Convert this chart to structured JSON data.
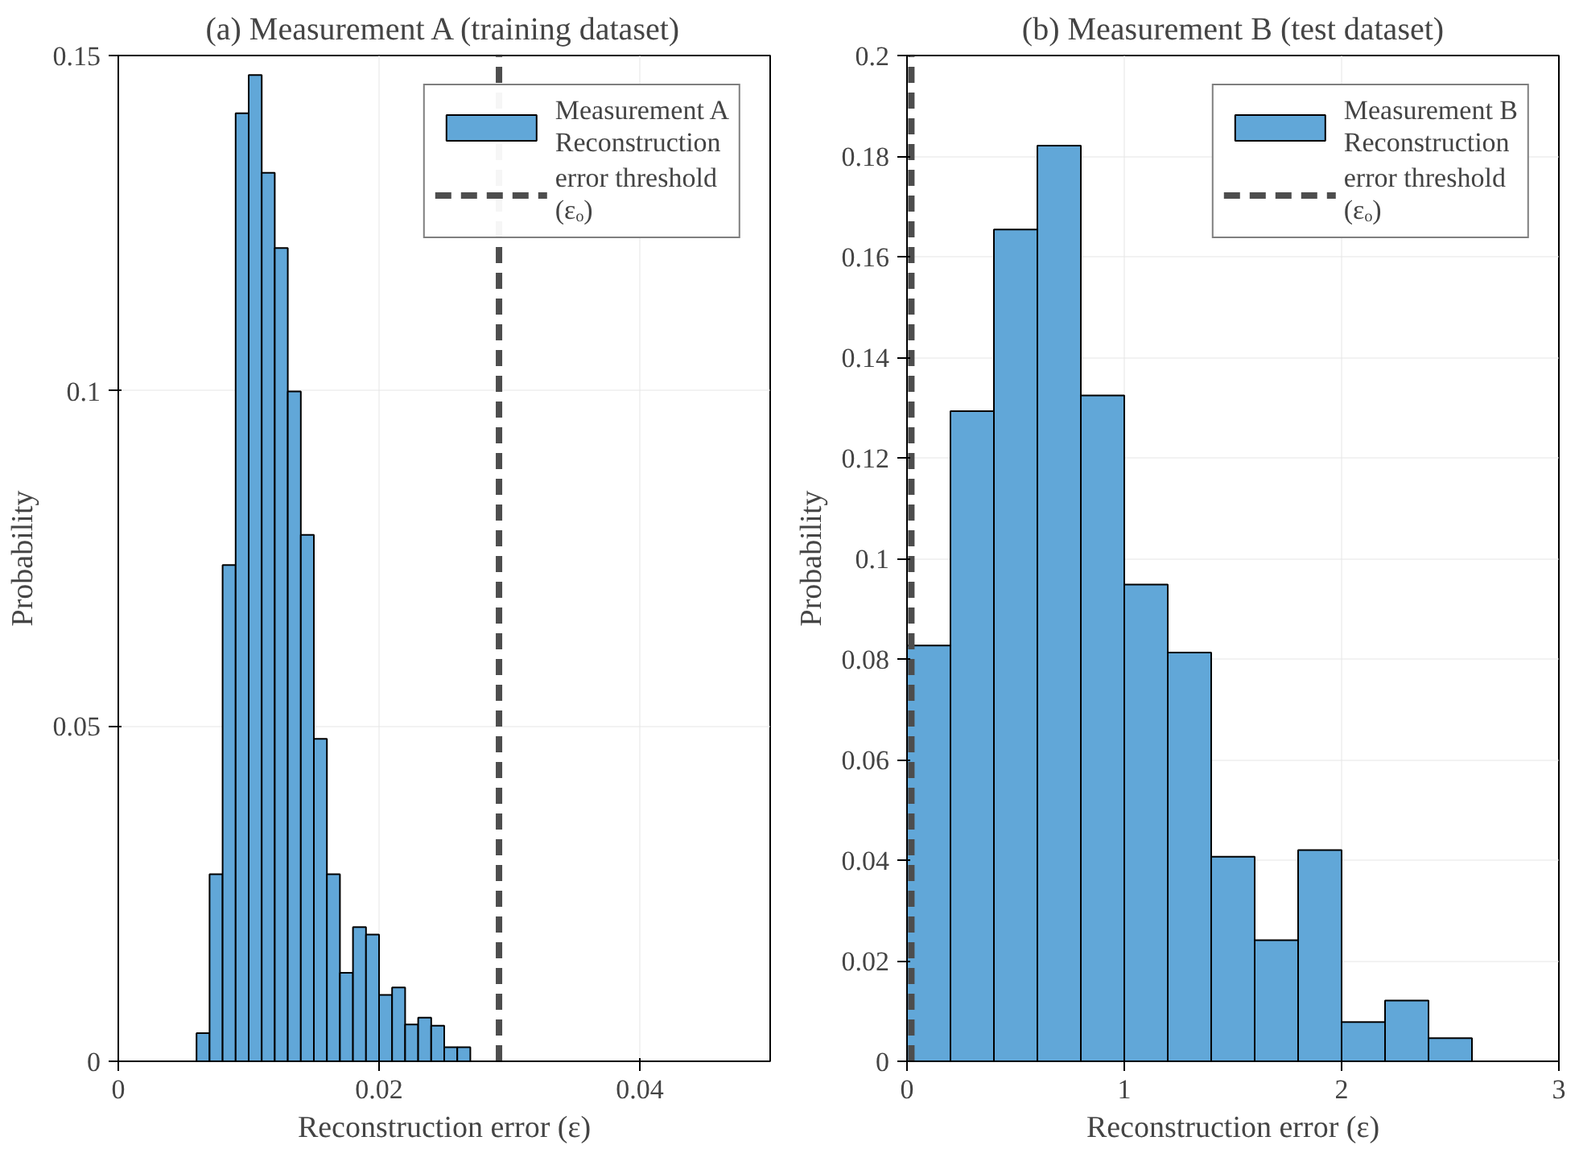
{
  "chart_data": [
    {
      "type": "histogram",
      "title": "(a) Measurement A (training dataset)",
      "xlabel": "Reconstruction error (ε)",
      "ylabel": "Probability",
      "bins": [
        0.006,
        0.007,
        0.008,
        0.009,
        0.01,
        0.011,
        0.012,
        0.013,
        0.014,
        0.015,
        0.016,
        0.017,
        0.018,
        0.019,
        0.02,
        0.021,
        0.022,
        0.023,
        0.024,
        0.025,
        0.026,
        0.027
      ],
      "series": [
        {
          "name": "Measurement A\nReconstruction",
          "color": "#61a7d8",
          "values": [
            0.0042,
            0.0279,
            0.074,
            0.1414,
            0.1471,
            0.1325,
            0.1213,
            0.0999,
            0.0785,
            0.0481,
            0.0279,
            0.0132,
            0.02,
            0.0189,
            0.0099,
            0.011,
            0.0055,
            0.0065,
            0.0053,
            0.0021,
            0.0021
          ]
        }
      ],
      "ref_lines": [
        {
          "axis": "x",
          "value": 0.0292,
          "label": "error threshold\n(εₒ)",
          "color": "#4d4d4d",
          "line_style": "dashed"
        }
      ],
      "xlim": [
        0,
        0.05
      ],
      "xticks": [
        0,
        0.02,
        0.04
      ],
      "ylim": [
        0,
        0.15
      ],
      "yticks": [
        0,
        0.05,
        0.1,
        0.15
      ],
      "grid": true,
      "legend": "top right"
    },
    {
      "type": "histogram",
      "title": "(b) Measurement B (test dataset)",
      "xlabel": "Reconstruction error (ε)",
      "ylabel": "Probability",
      "bins": [
        0,
        0.2,
        0.4,
        0.6,
        0.8,
        1.0,
        1.2,
        1.4,
        1.6,
        1.8,
        2.0,
        2.2,
        2.4,
        2.6
      ],
      "series": [
        {
          "name": "Measurement B\nReconstruction",
          "color": "#61a7d8",
          "values": [
            0.0827,
            0.1293,
            0.1654,
            0.1821,
            0.1324,
            0.0948,
            0.0813,
            0.0407,
            0.0241,
            0.042,
            0.0078,
            0.0121,
            0.0046
          ]
        }
      ],
      "ref_lines": [
        {
          "axis": "x",
          "value": 0.02,
          "label": "error threshold\n(εₒ)",
          "color": "#4d4d4d",
          "line_style": "dashed"
        }
      ],
      "xlim": [
        0,
        3
      ],
      "xticks": [
        0,
        1,
        2,
        3
      ],
      "ylim": [
        0,
        0.2
      ],
      "yticks": [
        0,
        0.02,
        0.04,
        0.06,
        0.08,
        0.1,
        0.12,
        0.14,
        0.16,
        0.18,
        0.2
      ],
      "grid": true,
      "legend": "top right"
    }
  ]
}
